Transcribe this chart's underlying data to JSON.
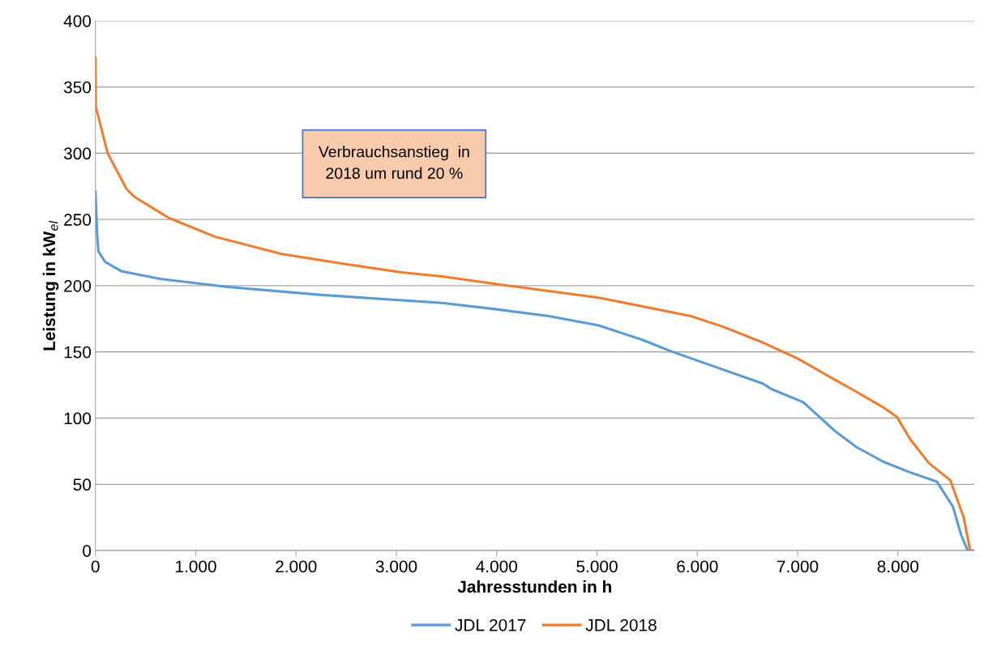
{
  "chart_data": {
    "type": "line",
    "xlabel": "Jahresstunden in h",
    "ylabel": "Leistung in kW$_{el}$",
    "annotations": [
      "Verbrauchsanstieg  in\n2018 um rund 20 %"
    ],
    "xlim": [
      0,
      8760
    ],
    "ylim": [
      0,
      400
    ],
    "xticks": [
      0,
      {
        "value": 1000,
        "label": "1.000"
      },
      {
        "value": 2000,
        "label": "2.000"
      },
      {
        "value": 3000,
        "label": "3.000"
      },
      {
        "value": 4000,
        "label": "4.000"
      },
      {
        "value": 5000,
        "label": "5.000"
      },
      {
        "value": 6000,
        "label": "6.000"
      },
      {
        "value": 7000,
        "label": "7.000"
      },
      {
        "value": 8000,
        "label": "8.000"
      }
    ],
    "yticks": [
      0,
      50,
      100,
      150,
      200,
      250,
      300,
      350,
      400
    ],
    "grid": "y",
    "legend": "bottom",
    "series": [
      {
        "name": "JDL 2017",
        "color": "#5b9bd5",
        "x": [
          0,
          16,
          29,
          96,
          256,
          656,
          1320,
          2256,
          3056,
          3456,
          4016,
          4520,
          5016,
          5456,
          5720,
          6016,
          6656,
          6736,
          7056,
          7376,
          7589,
          7856,
          8123,
          8389,
          8549,
          8629,
          8696
        ],
        "values": [
          271,
          240,
          226,
          218,
          211,
          205,
          199,
          193,
          189,
          187,
          182,
          177,
          170,
          159,
          151,
          143,
          126,
          122,
          112,
          90,
          78,
          67,
          59,
          52,
          33,
          12,
          0
        ]
      },
      {
        "name": "JDL 2018",
        "color": "#ed7d31",
        "x": [
          0,
          4,
          122,
          310,
          390,
          736,
          1190,
          1856,
          2520,
          3056,
          3456,
          4016,
          5016,
          5936,
          6256,
          6656,
          7000,
          7300,
          7536,
          7856,
          7989,
          8123,
          8309,
          8523,
          8656,
          8720,
          8760
        ],
        "values": [
          372,
          335,
          300,
          273,
          267,
          251,
          237,
          224,
          216,
          210,
          207,
          201,
          191,
          177,
          169,
          157,
          145,
          132,
          122,
          108,
          101,
          84,
          66,
          53,
          25,
          0,
          0
        ]
      }
    ]
  }
}
